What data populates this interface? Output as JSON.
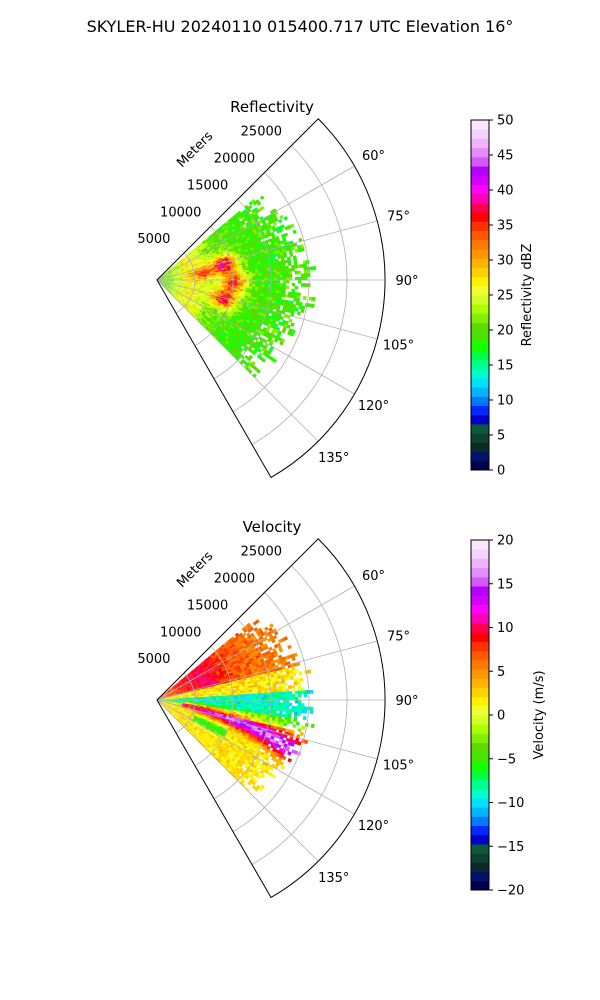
{
  "figure_title": "SKYLER-HU  20240110  015400.717 UTC Elevation 16°",
  "colormap": [
    "#00004c",
    "#00126a",
    "#0a2a2a",
    "#0f4030",
    "#0a5a3a",
    "#0000c8",
    "#0028ff",
    "#0078ff",
    "#00b4ff",
    "#00e0ff",
    "#00ffc8",
    "#00ff8c",
    "#00ff3c",
    "#1aff00",
    "#46e600",
    "#5adc00",
    "#82f000",
    "#aaff00",
    "#d2ff28",
    "#f0ff32",
    "#fff000",
    "#ffd200",
    "#ffb400",
    "#ff9600",
    "#ff7800",
    "#ff5a00",
    "#ff3200",
    "#ff0000",
    "#ff0050",
    "#ff00b4",
    "#ff00ff",
    "#d200ff",
    "#b400ff",
    "#d25aff",
    "#e68cff",
    "#f0b4ff",
    "#f5d2ff",
    "#fae6ff"
  ],
  "chart_data": [
    {
      "type": "heatmap",
      "projection": "polar-sector",
      "title": "Reflectivity",
      "radial_label": "Meters",
      "radial_ticks": [
        5000,
        10000,
        15000,
        20000,
        25000
      ],
      "radial_tick_labels": [
        "5000",
        "10000",
        "15000",
        "20000",
        "25000"
      ],
      "rmax": 30000,
      "theta_range_deg": [
        45,
        150
      ],
      "theta_tick_labels": [
        "60°",
        "75°",
        "90°",
        "105°",
        "120°",
        "135°"
      ],
      "theta_ticks_deg": [
        60,
        75,
        90,
        105,
        120,
        135
      ],
      "colorbar": {
        "label": "Reflectivity dBZ",
        "range": [
          0,
          50
        ],
        "ticks": [
          "0",
          "5",
          "10",
          "15",
          "20",
          "25",
          "30",
          "35",
          "40",
          "45",
          "50"
        ]
      },
      "field": {
        "data_theta_range_deg": [
          50,
          135
        ],
        "data_range_m": [
          0,
          20000
        ],
        "dominant_value": 20,
        "cores": [
          {
            "range_m": 9000,
            "azimuth_deg": 77,
            "value": 40
          },
          {
            "range_m": 10000,
            "azimuth_deg": 92,
            "value": 37
          },
          {
            "range_m": 9000,
            "azimuth_deg": 106,
            "value": 39
          },
          {
            "range_m": 6000,
            "azimuth_deg": 82,
            "value": 30
          }
        ]
      }
    },
    {
      "type": "heatmap",
      "projection": "polar-sector",
      "title": "Velocity",
      "radial_label": "Meters",
      "radial_ticks": [
        5000,
        10000,
        15000,
        20000,
        25000
      ],
      "radial_tick_labels": [
        "5000",
        "10000",
        "15000",
        "20000",
        "25000"
      ],
      "rmax": 30000,
      "theta_range_deg": [
        45,
        150
      ],
      "theta_tick_labels": [
        "60°",
        "75°",
        "90°",
        "105°",
        "120°",
        "135°"
      ],
      "theta_ticks_deg": [
        60,
        75,
        90,
        105,
        120,
        135
      ],
      "colorbar": {
        "label": "Velocity (m/s)",
        "range": [
          -20,
          20
        ],
        "ticks": [
          "−20",
          "−15",
          "−10",
          "−5",
          "0",
          "5",
          "10",
          "15",
          "20"
        ]
      },
      "field": {
        "data_theta_range_deg": [
          50,
          135
        ],
        "data_range_m": [
          0,
          20000
        ],
        "features": [
          {
            "region": "north",
            "azimuth_deg": [
              50,
              75
            ],
            "value": 8
          },
          {
            "region": "center",
            "azimuth_deg": [
              82,
              100
            ],
            "value": -10
          },
          {
            "region": "band",
            "azimuth_deg": [
              95,
              112
            ],
            "value": 14
          },
          {
            "region": "south",
            "azimuth_deg": [
              112,
              135
            ],
            "value": 1
          }
        ]
      }
    }
  ]
}
